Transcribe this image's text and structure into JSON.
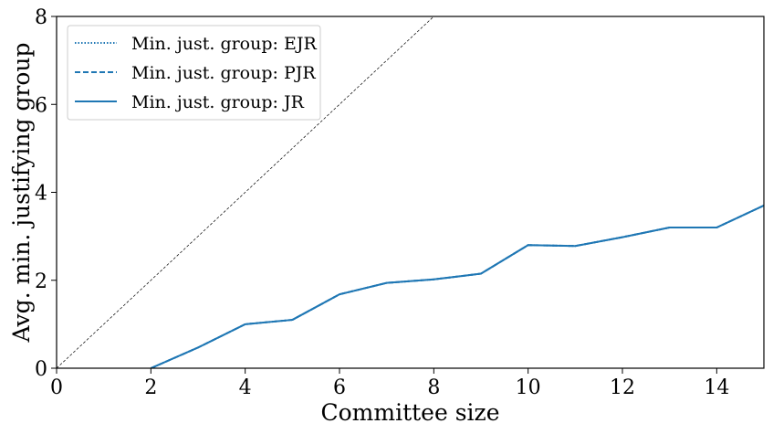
{
  "chart_data": {
    "type": "line",
    "title": "",
    "xlabel": "Committee size",
    "ylabel": "Avg. min. justifying group",
    "xlim": [
      0,
      15
    ],
    "ylim": [
      0,
      8
    ],
    "xticks": [
      "0",
      "2",
      "4",
      "6",
      "8",
      "10",
      "12",
      "14"
    ],
    "yticks": [
      "0",
      "2",
      "4",
      "6",
      "8"
    ],
    "grid": false,
    "legend_position": "top-left",
    "series": [
      {
        "name": "Min. just. group: EJR",
        "style": "dotted",
        "color": "#1f77b4",
        "x": [
          2,
          3,
          4,
          5,
          6,
          7,
          8,
          9,
          10,
          11,
          12,
          13,
          14,
          15
        ],
        "y": [
          0.0,
          0.47,
          1.0,
          1.1,
          1.68,
          1.94,
          2.02,
          2.15,
          2.8,
          2.78,
          2.98,
          3.2,
          3.2,
          3.7
        ]
      },
      {
        "name": "Min. just. group: PJR",
        "style": "dashed",
        "color": "#1f77b4",
        "x": [
          2,
          3,
          4,
          5,
          6,
          7,
          8,
          9,
          10,
          11,
          12,
          13,
          14,
          15
        ],
        "y": [
          0.0,
          0.47,
          1.0,
          1.1,
          1.68,
          1.94,
          2.02,
          2.15,
          2.8,
          2.78,
          2.98,
          3.2,
          3.2,
          3.7
        ]
      },
      {
        "name": "Min. just. group: JR",
        "style": "solid",
        "color": "#1f77b4",
        "x": [
          2,
          3,
          4,
          5,
          6,
          7,
          8,
          9,
          10,
          11,
          12,
          13,
          14,
          15
        ],
        "y": [
          0.0,
          0.47,
          1.0,
          1.1,
          1.68,
          1.94,
          2.02,
          2.15,
          2.8,
          2.78,
          2.98,
          3.2,
          3.2,
          3.7
        ]
      }
    ],
    "reference_line": {
      "description": "y = x",
      "style": "dashed-thin",
      "color": "#000000",
      "x": [
        0,
        8
      ],
      "y": [
        0,
        8
      ]
    }
  }
}
